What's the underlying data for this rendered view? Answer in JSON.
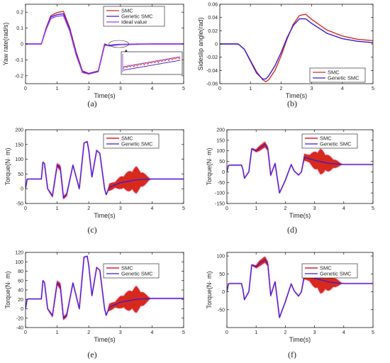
{
  "colors": {
    "smc": "#d72a1c",
    "genetic": "#3a1ad6",
    "ideal": "#9b3ff2",
    "halo": "#ffb6e6",
    "axis": "#111111",
    "grid": "#c8c8c8",
    "zoom_box": "#222222"
  },
  "chart_data": [
    {
      "id": "a",
      "type": "line",
      "panel_label": "(a)",
      "xlabel": "Time(s)",
      "ylabel": "Yaw rate(rad/s)",
      "xlim": [
        0,
        5
      ],
      "ylim": [
        -0.25,
        0.25
      ],
      "xticks": [
        0,
        1,
        2,
        3,
        4,
        5
      ],
      "yticks": [
        -0.2,
        -0.1,
        0,
        0.1,
        0.2
      ],
      "ytick_labels": [
        "-0.2",
        "-0.1",
        "0",
        "0.1",
        "0.2"
      ],
      "legend": {
        "position": "top-right",
        "entries": [
          "SMC",
          "Genetic SMC",
          "Ideal value"
        ]
      },
      "grid": false,
      "inset": "zoom",
      "series": [
        {
          "name": "SMC",
          "color_key": "smc",
          "x": [
            0,
            0.5,
            0.65,
            0.8,
            1.0,
            1.2,
            1.4,
            1.6,
            1.8,
            2.0,
            2.1,
            2.3,
            2.5,
            2.65,
            2.8,
            3.0,
            3.5,
            4.0,
            5.0
          ],
          "y": [
            0,
            0,
            0.1,
            0.178,
            0.198,
            0.205,
            0.1,
            -0.05,
            -0.17,
            -0.185,
            -0.18,
            -0.17,
            0.0,
            -0.01,
            -0.006,
            -0.003,
            -0.002,
            0,
            0
          ]
        },
        {
          "name": "Genetic SMC",
          "color_key": "genetic",
          "x": [
            0,
            0.5,
            0.65,
            0.8,
            1.0,
            1.2,
            1.4,
            1.6,
            1.8,
            2.0,
            2.1,
            2.3,
            2.5,
            2.65,
            2.8,
            3.0,
            3.5,
            4.0,
            5.0
          ],
          "y": [
            0,
            0,
            0.095,
            0.17,
            0.185,
            0.19,
            0.09,
            -0.06,
            -0.175,
            -0.188,
            -0.182,
            -0.172,
            -0.005,
            -0.012,
            -0.008,
            -0.004,
            -0.002,
            0,
            0
          ]
        },
        {
          "name": "Ideal value",
          "color_key": "ideal",
          "x": [
            0,
            0.5,
            0.65,
            0.8,
            1.0,
            1.2,
            1.4,
            1.6,
            1.8,
            2.0,
            2.1,
            2.3,
            2.5,
            2.65,
            2.8,
            3.0,
            3.5,
            4.0,
            5.0
          ],
          "y": [
            0,
            0,
            0.09,
            0.16,
            0.175,
            0.178,
            0.08,
            -0.07,
            -0.18,
            -0.19,
            -0.185,
            -0.175,
            -0.01,
            -0.008,
            -0.004,
            -0.002,
            0,
            0,
            0
          ]
        }
      ]
    },
    {
      "id": "b",
      "type": "line",
      "panel_label": "(b)",
      "xlabel": "Time(s)",
      "ylabel": "Sideslip angle(rad)",
      "xlim": [
        0,
        5
      ],
      "ylim": [
        -0.06,
        0.06
      ],
      "xticks": [
        0,
        1,
        2,
        3,
        4,
        5
      ],
      "yticks": [
        -0.06,
        -0.04,
        -0.02,
        0,
        0.02,
        0.04,
        0.06
      ],
      "ytick_labels": [
        "-0.06",
        "-0.04",
        "-0.02",
        "0",
        "0.02",
        "0.04",
        "0.06"
      ],
      "legend": {
        "position": "bottom-right",
        "entries": [
          "SMC",
          "Genetic SMC"
        ]
      },
      "grid": false,
      "series": [
        {
          "name": "SMC",
          "color_key": "smc",
          "x": [
            0,
            0.6,
            0.8,
            1.0,
            1.2,
            1.4,
            1.5,
            1.6,
            1.8,
            2.0,
            2.2,
            2.4,
            2.6,
            2.8,
            3.0,
            3.5,
            4.0,
            4.5,
            5.0
          ],
          "y": [
            0,
            0,
            -0.008,
            -0.025,
            -0.042,
            -0.054,
            -0.057,
            -0.054,
            -0.04,
            -0.018,
            0.008,
            0.03,
            0.043,
            0.045,
            0.037,
            0.021,
            0.012,
            0.007,
            0.005
          ]
        },
        {
          "name": "Genetic SMC",
          "color_key": "genetic",
          "x": [
            0,
            0.6,
            0.8,
            1.0,
            1.2,
            1.4,
            1.5,
            1.6,
            1.8,
            2.0,
            2.2,
            2.4,
            2.6,
            2.8,
            3.0,
            3.5,
            4.0,
            4.5,
            5.0
          ],
          "y": [
            0,
            0,
            -0.008,
            -0.026,
            -0.044,
            -0.053,
            -0.053,
            -0.048,
            -0.033,
            -0.013,
            0.01,
            0.028,
            0.038,
            0.038,
            0.031,
            0.016,
            0.008,
            0.004,
            0.002
          ]
        }
      ]
    },
    {
      "id": "c",
      "type": "line",
      "panel_label": "(c)",
      "xlabel": "Time(s)",
      "ylabel": "Torque(N· m)",
      "xlim": [
        0,
        5
      ],
      "ylim": [
        -50,
        200
      ],
      "xticks": [
        0,
        1,
        2,
        3,
        4,
        5
      ],
      "yticks": [
        -50,
        0,
        50,
        100,
        150,
        200
      ],
      "ytick_labels": [
        "-50",
        "0",
        "50",
        "100",
        "150",
        "200"
      ],
      "legend": {
        "position": "top-right",
        "entries": [
          "SMC",
          "Genetic SMC"
        ]
      },
      "grid": false,
      "chatter": [
        {
          "range": [
            0.7,
            1.5
          ],
          "amplitude": 8
        },
        {
          "range": [
            2.6,
            3.95
          ],
          "amplitude": 45,
          "peak": 3.5
        }
      ],
      "series": [
        {
          "name": "SMC",
          "color_key": "smc",
          "x": [
            0,
            0.05,
            0.1,
            0.5,
            0.55,
            0.6,
            0.7,
            0.85,
            1.0,
            1.1,
            1.2,
            1.3,
            1.5,
            1.6,
            1.7,
            1.85,
            1.95,
            2.0,
            2.1,
            2.25,
            2.35,
            2.5,
            2.55,
            2.65,
            3.0,
            3.5,
            4.0,
            5.0
          ],
          "y": [
            0,
            32,
            33,
            33,
            90,
            85,
            0,
            -25,
            80,
            70,
            -30,
            -20,
            80,
            40,
            0,
            155,
            160,
            130,
            40,
            130,
            120,
            0,
            -20,
            5,
            20,
            30,
            33,
            33
          ]
        },
        {
          "name": "Genetic SMC",
          "color_key": "genetic",
          "x": [
            0,
            0.05,
            0.1,
            0.5,
            0.55,
            0.6,
            0.7,
            0.85,
            1.0,
            1.1,
            1.2,
            1.3,
            1.5,
            1.6,
            1.7,
            1.85,
            1.95,
            2.0,
            2.1,
            2.25,
            2.35,
            2.5,
            2.55,
            2.65,
            3.0,
            3.5,
            4.0,
            5.0
          ],
          "y": [
            0,
            32,
            33,
            33,
            90,
            85,
            0,
            -25,
            80,
            70,
            -30,
            -20,
            80,
            40,
            0,
            155,
            160,
            130,
            40,
            130,
            120,
            0,
            -20,
            5,
            20,
            30,
            33,
            33
          ]
        }
      ]
    },
    {
      "id": "d",
      "type": "line",
      "panel_label": "(d)",
      "xlabel": "Time(s)",
      "ylabel": "Torque(N· m)",
      "xlim": [
        0,
        5
      ],
      "ylim": [
        -150,
        200
      ],
      "xticks": [
        0,
        1,
        2,
        3,
        4,
        5
      ],
      "yticks": [
        -150,
        -100,
        -50,
        0,
        50,
        100,
        150,
        200
      ],
      "ytick_labels": [
        "-150",
        "-100",
        "-50",
        "0",
        "50",
        "100",
        "150",
        "200"
      ],
      "legend": {
        "position": "top-right",
        "entries": [
          "SMC",
          "Genetic SMC"
        ]
      },
      "grid": false,
      "chatter": [
        {
          "range": [
            0.85,
            1.6
          ],
          "amplitude": 15
        },
        {
          "range": [
            2.6,
            3.95
          ],
          "amplitude": 60,
          "peak": 3.2
        }
      ],
      "series": [
        {
          "name": "SMC",
          "color_key": "smc",
          "x": [
            0,
            0.05,
            0.1,
            0.5,
            0.55,
            0.6,
            0.75,
            0.85,
            1.0,
            1.1,
            1.3,
            1.4,
            1.5,
            1.65,
            1.8,
            1.9,
            2.0,
            2.2,
            2.3,
            2.45,
            2.55,
            2.65,
            3.0,
            3.5,
            4.0,
            5.0
          ],
          "y": [
            0,
            30,
            32,
            32,
            10,
            -30,
            0,
            110,
            100,
            110,
            130,
            110,
            -15,
            40,
            -100,
            -70,
            -40,
            35,
            5,
            -15,
            0,
            70,
            55,
            40,
            35,
            35
          ]
        },
        {
          "name": "Genetic SMC",
          "color_key": "genetic",
          "x": [
            0,
            0.05,
            0.1,
            0.5,
            0.55,
            0.6,
            0.75,
            0.85,
            1.0,
            1.1,
            1.3,
            1.4,
            1.5,
            1.65,
            1.8,
            1.9,
            2.0,
            2.2,
            2.3,
            2.45,
            2.55,
            2.65,
            3.0,
            3.5,
            4.0,
            5.0
          ],
          "y": [
            0,
            30,
            32,
            32,
            10,
            -30,
            0,
            110,
            100,
            110,
            130,
            110,
            -15,
            40,
            -100,
            -70,
            -40,
            35,
            5,
            -15,
            0,
            70,
            55,
            40,
            35,
            35
          ]
        }
      ]
    },
    {
      "id": "e",
      "type": "line",
      "panel_label": "(e)",
      "xlabel": "Time(s)",
      "ylabel": "Torque(N· m)",
      "xlim": [
        0,
        5
      ],
      "ylim": [
        -40,
        120
      ],
      "xticks": [
        0,
        1,
        2,
        3,
        4,
        5
      ],
      "yticks": [
        -40,
        -20,
        0,
        20,
        40,
        60,
        80,
        100,
        120
      ],
      "ytick_labels": [
        "-40",
        "-20",
        "0",
        "20",
        "40",
        "60",
        "80",
        "100",
        "120"
      ],
      "legend": {
        "position": "top-right",
        "entries": [
          "SMC",
          "Genetic SMC"
        ]
      },
      "grid": false,
      "chatter": [
        {
          "range": [
            0.7,
            1.5
          ],
          "amplitude": 6
        },
        {
          "range": [
            2.6,
            3.95
          ],
          "amplitude": 28,
          "peak": 3.5
        }
      ],
      "series": [
        {
          "name": "SMC",
          "color_key": "smc",
          "x": [
            0,
            0.05,
            0.1,
            0.5,
            0.55,
            0.6,
            0.7,
            0.85,
            1.0,
            1.1,
            1.2,
            1.3,
            1.5,
            1.6,
            1.7,
            1.85,
            1.95,
            2.0,
            2.1,
            2.25,
            2.35,
            2.5,
            2.55,
            2.65,
            3.0,
            3.5,
            4.0,
            5.0
          ],
          "y": [
            0,
            20,
            21,
            21,
            60,
            56,
            0,
            -15,
            55,
            48,
            -20,
            -14,
            55,
            28,
            0,
            110,
            112,
            92,
            28,
            88,
            82,
            0,
            -14,
            3,
            14,
            20,
            22,
            22
          ]
        },
        {
          "name": "Genetic SMC",
          "color_key": "genetic",
          "x": [
            0,
            0.05,
            0.1,
            0.5,
            0.55,
            0.6,
            0.7,
            0.85,
            1.0,
            1.1,
            1.2,
            1.3,
            1.5,
            1.6,
            1.7,
            1.85,
            1.95,
            2.0,
            2.1,
            2.25,
            2.35,
            2.5,
            2.55,
            2.65,
            3.0,
            3.5,
            4.0,
            5.0
          ],
          "y": [
            0,
            20,
            21,
            21,
            60,
            56,
            0,
            -15,
            55,
            48,
            -20,
            -14,
            55,
            28,
            0,
            110,
            112,
            92,
            28,
            88,
            82,
            0,
            -14,
            3,
            14,
            20,
            22,
            22
          ]
        }
      ]
    },
    {
      "id": "f",
      "type": "line",
      "panel_label": "(f)",
      "xlabel": "Time(s)",
      "ylabel": "Torque(N· m)",
      "xlim": [
        0,
        5
      ],
      "ylim": [
        -100,
        110
      ],
      "xticks": [
        0,
        1,
        2,
        3,
        4,
        5
      ],
      "yticks": [
        -50,
        0,
        50,
        100
      ],
      "ytick_labels": [
        "-50",
        "0",
        "50",
        "100"
      ],
      "legend": {
        "position": "top-right",
        "entries": [
          "SMC",
          "Genetic SMC"
        ]
      },
      "grid": false,
      "chatter": [
        {
          "range": [
            0.85,
            1.6
          ],
          "amplitude": 10
        },
        {
          "range": [
            2.6,
            3.95
          ],
          "amplitude": 38,
          "peak": 3.2
        }
      ],
      "series": [
        {
          "name": "SMC",
          "color_key": "smc",
          "x": [
            0,
            0.05,
            0.1,
            0.5,
            0.55,
            0.6,
            0.75,
            0.85,
            1.0,
            1.1,
            1.3,
            1.4,
            1.5,
            1.65,
            1.8,
            1.9,
            2.0,
            2.2,
            2.3,
            2.45,
            2.55,
            2.65,
            3.0,
            3.5,
            4.0,
            5.0
          ],
          "y": [
            0,
            22,
            23,
            23,
            5,
            -22,
            0,
            75,
            70,
            78,
            90,
            78,
            -10,
            28,
            -72,
            -50,
            -28,
            22,
            3,
            -12,
            0,
            45,
            38,
            27,
            23,
            23
          ]
        },
        {
          "name": "Genetic SMC",
          "color_key": "genetic",
          "x": [
            0,
            0.05,
            0.1,
            0.5,
            0.55,
            0.6,
            0.75,
            0.85,
            1.0,
            1.1,
            1.3,
            1.4,
            1.5,
            1.65,
            1.8,
            1.9,
            2.0,
            2.2,
            2.3,
            2.45,
            2.55,
            2.65,
            3.0,
            3.5,
            4.0,
            5.0
          ],
          "y": [
            0,
            22,
            23,
            23,
            5,
            -22,
            0,
            75,
            70,
            78,
            90,
            78,
            -10,
            28,
            -72,
            -50,
            -28,
            22,
            3,
            -12,
            0,
            45,
            38,
            27,
            23,
            23
          ]
        }
      ]
    }
  ]
}
